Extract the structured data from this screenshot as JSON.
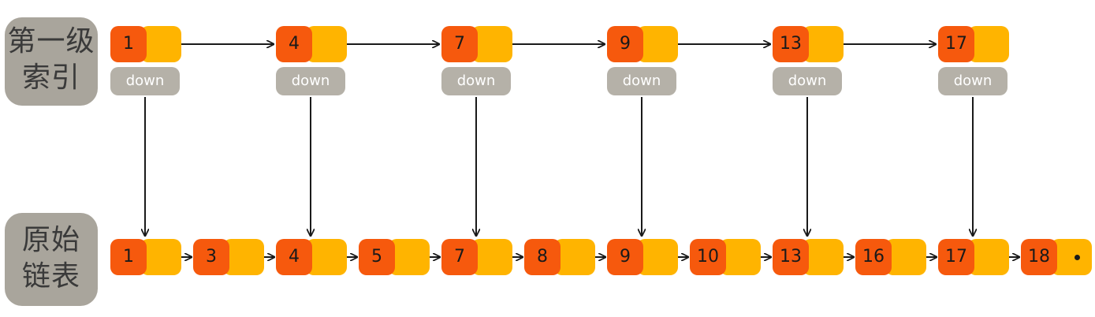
{
  "labels": {
    "level1_line1": "第一级",
    "level1_line2": "索引",
    "level0_line1": "原始",
    "level0_line2": "链表"
  },
  "down_label": "down",
  "index_level": [
    "1",
    "4",
    "7",
    "9",
    "13",
    "17"
  ],
  "base_list": [
    "1",
    "3",
    "4",
    "5",
    "7",
    "8",
    "9",
    "10",
    "13",
    "16",
    "17",
    "18"
  ],
  "colors": {
    "value_cell": "#f6590d",
    "pointer_cell": "#ffb400",
    "down_box": "#b5b1a8",
    "side_label": "#a9a59c",
    "arrow": "#1a1a1a"
  }
}
